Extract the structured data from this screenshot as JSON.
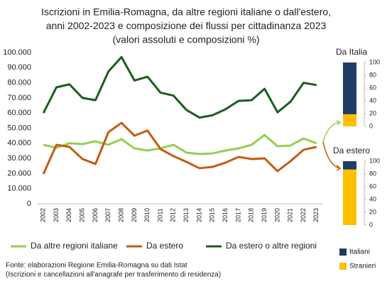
{
  "chart_data": [
    {
      "type": "line",
      "title": [
        "Iscrizioni in Emilia-Romagna, da altre regioni italiane o dall'estero,",
        "anni 2002-2023 e composizione dei flussi per cittadinanza 2023",
        "(valori assoluti e composizioni %)"
      ],
      "categories": [
        "2002",
        "2003",
        "2004",
        "2005",
        "2006",
        "2007",
        "2008",
        "2009",
        "2010",
        "2011",
        "2012",
        "2013",
        "2014",
        "2015",
        "2016",
        "2017",
        "2018",
        "2019",
        "2020",
        "2021",
        "2022",
        "2023"
      ],
      "series": [
        {
          "name": "Da altre regioni italiane",
          "color": "#92d050",
          "values": [
            39000,
            37000,
            40000,
            39500,
            41300,
            39000,
            42700,
            36600,
            35200,
            36600,
            39000,
            33800,
            32900,
            33300,
            35200,
            36600,
            39000,
            45500,
            38000,
            38500,
            43200,
            40000
          ]
        },
        {
          "name": "Da estero",
          "color": "#c55a11",
          "values": [
            19700,
            39000,
            37600,
            29600,
            26300,
            47400,
            53500,
            45000,
            48400,
            36200,
            31500,
            27700,
            23500,
            24400,
            27200,
            31000,
            29600,
            30000,
            21600,
            28200,
            35700,
            37600
          ]
        },
        {
          "name": "Da estero o altre regioni",
          "color": "#1e5c1e",
          "values": [
            60000,
            77000,
            79000,
            70000,
            68500,
            87500,
            97000,
            81500,
            84000,
            73500,
            71500,
            62000,
            57000,
            58500,
            62500,
            68000,
            68500,
            76000,
            60500,
            67500,
            80000,
            78500
          ]
        }
      ],
      "ylim": [
        0,
        100000
      ],
      "yticks": [
        0,
        {
          "value": 10000,
          "label": "10.000"
        },
        {
          "value": 20000,
          "label": "20.000"
        },
        {
          "value": 30000,
          "label": "30.000"
        },
        {
          "value": 40000,
          "label": "40.000"
        },
        {
          "value": 50000,
          "label": "50.000"
        },
        {
          "value": 60000,
          "label": "60.000"
        },
        {
          "value": 70000,
          "label": "70.000"
        },
        {
          "value": 80000,
          "label": "80.000"
        },
        {
          "value": 90000,
          "label": "90.000"
        },
        {
          "value": 100000,
          "label": "100.000"
        }
      ],
      "grid": false,
      "notes": [
        "Fonte: elaborazioni Regione Emilia-Romagna su dati Istat",
        "(Iscrizioni e cancellazioni all'anagrafe per trasferimento di residenza)"
      ]
    },
    {
      "type": "stacked-bar",
      "categories": [
        "Da Italia",
        "Da estero"
      ],
      "series": [
        {
          "name": "Italiani",
          "color": "#1f3d64",
          "values": [
            81,
            13
          ]
        },
        {
          "name": "Stranieri",
          "color": "#ffc000",
          "values": [
            19,
            87
          ]
        }
      ],
      "ylim": [
        0,
        100
      ],
      "yticks": [
        0,
        20,
        40,
        60,
        80,
        100
      ]
    }
  ]
}
